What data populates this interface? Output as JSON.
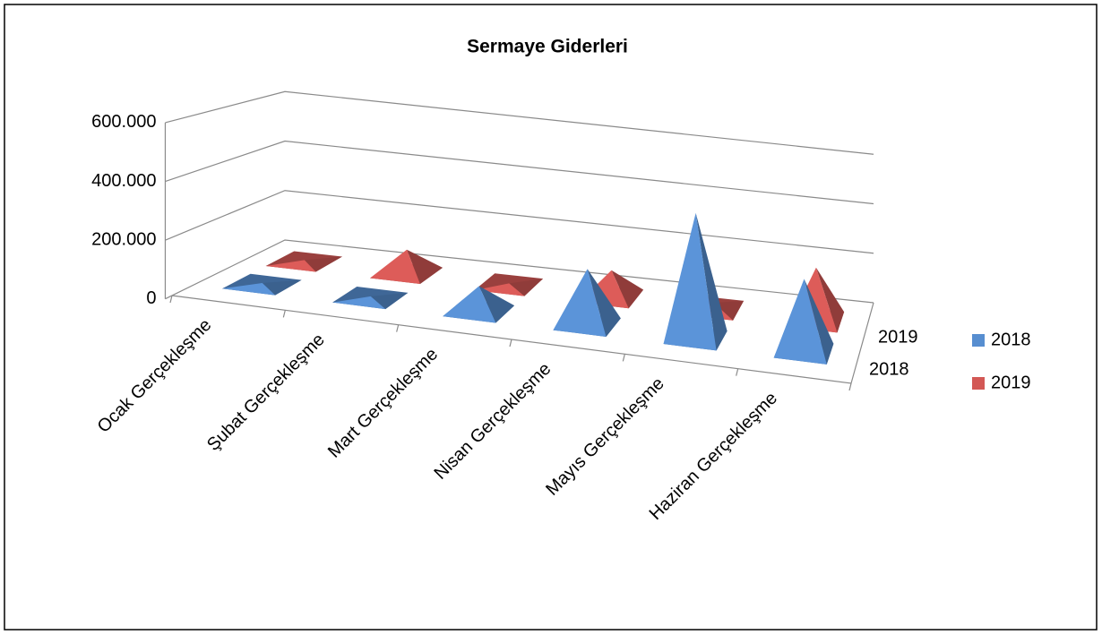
{
  "chart_data": {
    "type": "pyramid3d",
    "title": "Sermaye Giderleri",
    "categories": [
      "Ocak Gerçekleşme",
      "Şubat Gerçekleşme",
      "Mart Gerçekleşme",
      "Nisan Gerçekleşme",
      "Mayıs Gerçekleşme",
      "Haziran Gerçekleşme"
    ],
    "series": [
      {
        "name": "2018",
        "color": "#4f81bd",
        "values": [
          5000,
          5000,
          90000,
          200000,
          450000,
          260000
        ]
      },
      {
        "name": "2019",
        "color": "#c0504d",
        "values": [
          5000,
          90000,
          5000,
          100000,
          20000,
          200000
        ]
      }
    ],
    "ylim": [
      0,
      600000
    ],
    "yticks": [
      0,
      {
        "value": 200000,
        "label": "200.000"
      },
      {
        "value": 400000,
        "label": "400.000"
      },
      {
        "value": 600000,
        "label": "600.000"
      }
    ],
    "grid": true,
    "legend": "right"
  }
}
